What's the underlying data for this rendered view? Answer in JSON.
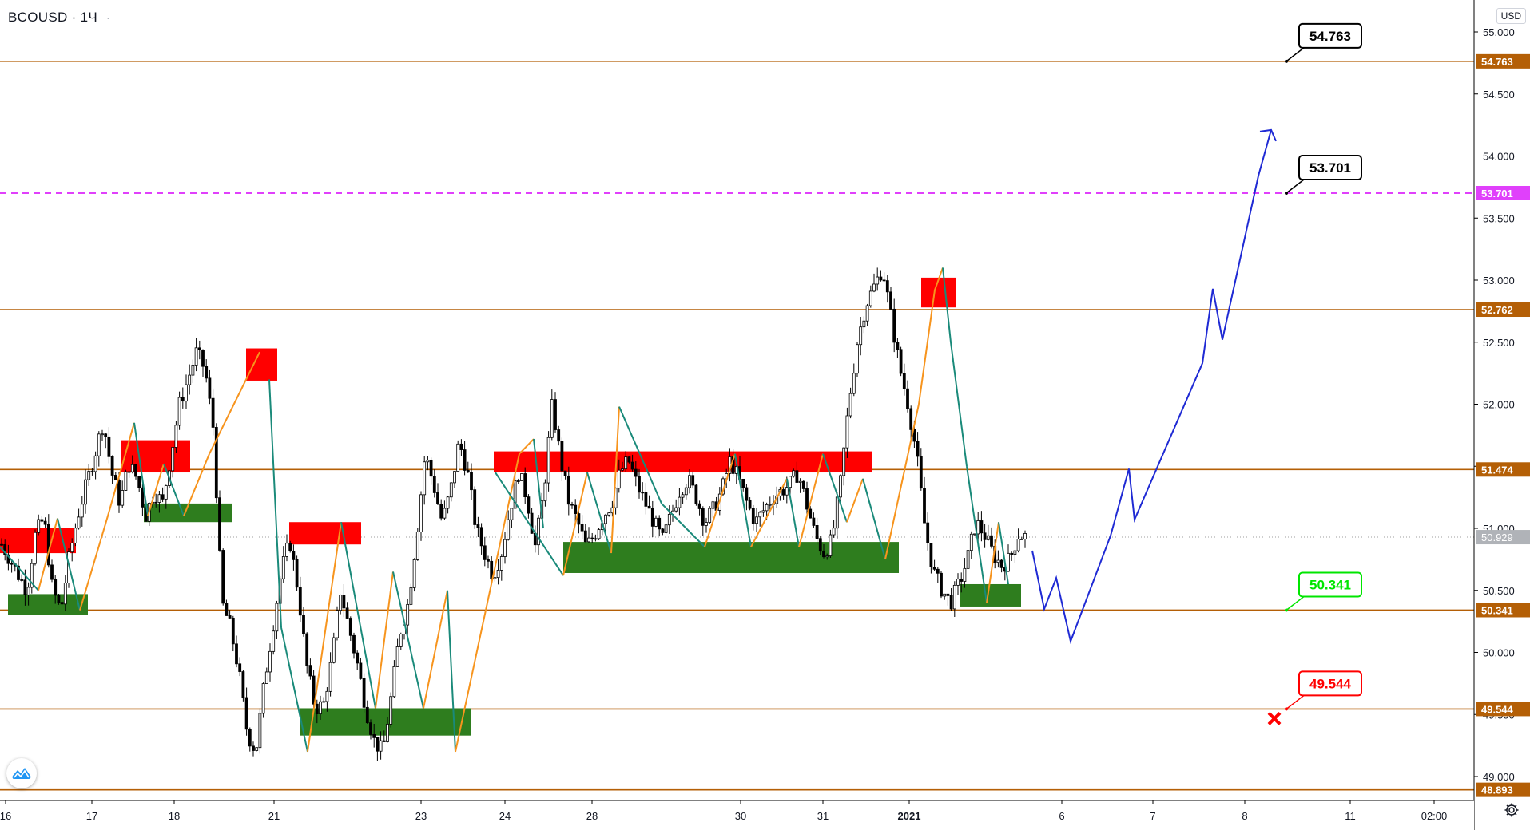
{
  "header": {
    "symbol": "BCOUSD",
    "interval": "1Ч",
    "more": "·"
  },
  "axis": {
    "currency": "USD"
  },
  "icons": {
    "logo": "tradingview-cloud-logo-icon",
    "settings": "gear-icon"
  },
  "colors": {
    "up_candle": "#ffffff",
    "down_candle": "#000000",
    "level_line": "#b45f06",
    "dashed_level": "#e040fb",
    "zigzag_up": "#f7941d",
    "zigzag_down": "#1a8a7a",
    "supply_zone": "#ff0000",
    "demand_zone": "#2e7d1e",
    "projection": "#1f2ad4",
    "last_price": "#9e9e9e"
  },
  "chart_data": {
    "type": "candlestick",
    "symbol": "BCOUSD",
    "interval": "1Ч",
    "ylim": [
      48.85,
      55.18
    ],
    "y_ticks": [
      "55.000",
      "54.500",
      "54.000",
      "53.500",
      "53.000",
      "52.500",
      "52.000",
      "51.500",
      "51.000",
      "50.500",
      "50.000",
      "49.500",
      "49.000"
    ],
    "x_ticks": [
      "16",
      "17",
      "18",
      "21",
      "23",
      "24",
      "28",
      "30",
      "31",
      "2021",
      "6",
      "7",
      "8",
      "11",
      "02:00"
    ],
    "last_price": "50.929",
    "levels": [
      {
        "value": 54.763,
        "label": "54.763",
        "style": "solid"
      },
      {
        "value": 53.701,
        "label": "53.701",
        "style": "dashed"
      },
      {
        "value": 52.762,
        "label": "52.762",
        "style": "solid"
      },
      {
        "value": 51.474,
        "label": "51.474",
        "style": "solid"
      },
      {
        "value": 50.341,
        "label": "50.341",
        "style": "solid"
      },
      {
        "value": 49.544,
        "label": "49.544",
        "style": "solid"
      },
      {
        "value": 48.893,
        "label": "48.893",
        "style": "solid"
      }
    ],
    "callouts": [
      {
        "label": "54.763",
        "value": 54.763,
        "color": "black"
      },
      {
        "label": "53.701",
        "value": 53.701,
        "color": "black"
      },
      {
        "label": "50.341",
        "value": 50.341,
        "color": "green"
      },
      {
        "label": "49.544",
        "value": 49.544,
        "color": "red",
        "marker": "stop-cross"
      }
    ],
    "supply_zones": [
      {
        "high": 51.0,
        "low": 50.8
      },
      {
        "high": 51.71,
        "low": 51.45
      },
      {
        "high": 52.45,
        "low": 52.19
      },
      {
        "high": 51.05,
        "low": 50.87
      },
      {
        "high": 51.62,
        "low": 51.45
      },
      {
        "high": 53.02,
        "low": 52.78
      }
    ],
    "demand_zones": [
      {
        "high": 50.47,
        "low": 50.3
      },
      {
        "high": 51.2,
        "low": 51.05
      },
      {
        "high": 49.55,
        "low": 49.33
      },
      {
        "high": 50.89,
        "low": 50.64
      },
      {
        "high": 50.55,
        "low": 50.37
      }
    ],
    "projection_path": [
      50.82,
      50.35,
      50.6,
      50.09,
      50.94,
      51.48,
      51.07,
      52.33,
      52.93,
      52.52,
      53.84,
      54.21
    ],
    "price_path": [
      50.87,
      50.75,
      50.62,
      50.5,
      50.96,
      51.08,
      50.5,
      50.34,
      50.78,
      51.1,
      51.35,
      51.6,
      51.86,
      51.45,
      51.2,
      51.52,
      51.4,
      51.1,
      51.3,
      51.2,
      51.6,
      52.0,
      52.2,
      52.42,
      52.28,
      51.8,
      50.4,
      50.2,
      49.85,
      49.35,
      49.2,
      49.75,
      50.2,
      50.65,
      50.9,
      50.5,
      49.9,
      49.55,
      49.58,
      49.95,
      50.5,
      50.2,
      49.9,
      49.55,
      49.28,
      49.2,
      49.65,
      50.15,
      50.4,
      50.95,
      51.6,
      51.35,
      51.05,
      51.3,
      51.7,
      51.45,
      51.0,
      50.8,
      50.62,
      50.8,
      51.15,
      51.45,
      51.25,
      50.85,
      51.3,
      52.0,
      51.55,
      51.2,
      51.05,
      50.85,
      50.95,
      51.1,
      51.2,
      51.45,
      51.55,
      51.35,
      51.2,
      51.05,
      50.9,
      51.1,
      51.3,
      51.4,
      51.25,
      51.05,
      51.15,
      51.3,
      51.55,
      51.4,
      51.2,
      51.05,
      51.15,
      51.25,
      51.3,
      51.35,
      51.45,
      51.2,
      50.95,
      50.8,
      50.9,
      51.35,
      52.0,
      52.5,
      52.8,
      52.95,
      53.1,
      52.7,
      52.3,
      52.0,
      51.6,
      51.0,
      50.65,
      50.5,
      50.4,
      50.55,
      50.75,
      51.05,
      50.95,
      50.8,
      50.7,
      50.75,
      50.95,
      50.93
    ],
    "zigzag": [
      [
        50.85,
        50.5,
        51.08,
        50.34,
        51.1,
        51.85,
        51.1,
        51.52,
        51.1,
        51.6,
        52.42
      ],
      [
        52.2,
        50.2,
        49.2,
        51.05,
        49.55,
        50.65,
        49.55,
        50.5,
        49.2,
        51.6,
        51.72,
        51.0
      ],
      [
        51.45,
        50.62,
        51.45,
        50.8,
        51.98,
        51.2,
        50.85,
        51.6,
        50.85,
        51.4,
        50.85,
        51.6,
        51.05,
        51.4,
        50.75
      ],
      [
        50.75,
        52.0,
        52.92,
        53.1,
        52.5,
        51.5,
        50.4,
        51.05,
        50.55
      ]
    ]
  }
}
